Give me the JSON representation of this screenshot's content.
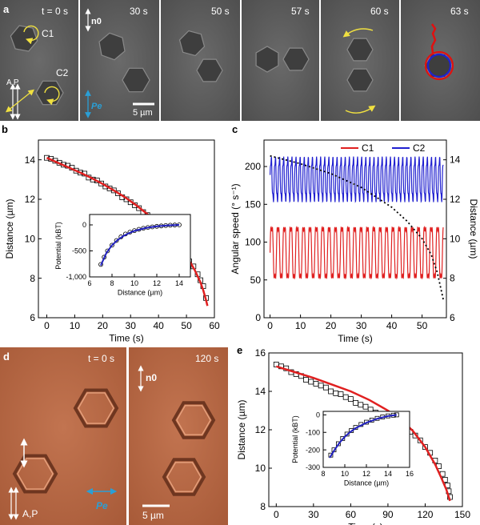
{
  "panel_a": {
    "label": "a",
    "frames": [
      {
        "time": "t = 0 s",
        "particles": [
          "C1",
          "C2"
        ]
      },
      {
        "time": "30 s"
      },
      {
        "time": "50 s"
      },
      {
        "time": "57 s"
      },
      {
        "time": "60 s"
      },
      {
        "time": "63 s"
      }
    ],
    "director_label": "n0",
    "polarization_label": "Pe",
    "polarizer_label": "A P",
    "scale_bar": "5 µm",
    "colors": {
      "frame_bg": "#5c5c5c",
      "arrow_yellow": "#f0e040",
      "arrow_cyan": "#2a9fd6",
      "trail_red": "#e01010",
      "trail_blue": "#2020d0"
    }
  },
  "panel_b": {
    "label": "b"
  },
  "panel_c": {
    "label": "c"
  },
  "panel_d": {
    "label": "d",
    "frames": [
      {
        "time": "t = 0 s"
      },
      {
        "time": "120 s"
      }
    ],
    "director_label": "n0",
    "polarization_label": "Pe",
    "polarizer_label": "A,P",
    "scale_bar": "5 µm",
    "colors": {
      "frame_bg": "#b86a44",
      "arrow_cyan": "#2a9fd6"
    }
  },
  "panel_e": {
    "label": "e"
  },
  "chart_data": [
    {
      "id": "b-main",
      "type": "scatter",
      "title": "",
      "xlabel": "Time (s)",
      "ylabel": "Distance (µm)",
      "xlim": [
        -3,
        60
      ],
      "ylim": [
        6,
        15
      ],
      "xticks": [
        0,
        10,
        20,
        30,
        40,
        50,
        60
      ],
      "yticks": [
        6,
        8,
        10,
        12,
        14
      ],
      "series": [
        {
          "name": "data",
          "marker": "square",
          "color": "#000000",
          "x": [
            0,
            1.5,
            3,
            4.5,
            6,
            7.5,
            9,
            10.5,
            12,
            13.5,
            15,
            16.5,
            18,
            19.5,
            21,
            22.5,
            24,
            25.5,
            27,
            28.5,
            30,
            31.5,
            33,
            34.5,
            36,
            37.5,
            39,
            40.5,
            42,
            43.5,
            45,
            46.5,
            48,
            49.5,
            51,
            52.5,
            54,
            55,
            56,
            57
          ],
          "y": [
            14.1,
            14.05,
            13.95,
            13.85,
            13.75,
            13.7,
            13.6,
            13.45,
            13.35,
            13.3,
            13.1,
            13.0,
            12.95,
            12.8,
            12.65,
            12.55,
            12.45,
            12.3,
            12.1,
            12.0,
            11.85,
            11.7,
            11.55,
            11.35,
            11.2,
            11.0,
            10.85,
            10.6,
            10.4,
            10.2,
            9.95,
            9.75,
            9.5,
            9.2,
            8.85,
            8.6,
            8.2,
            7.9,
            7.6,
            7.0
          ]
        },
        {
          "name": "fit",
          "marker": "line",
          "color": "#e02020",
          "x": [
            0,
            4,
            8,
            12,
            16,
            20,
            24,
            28,
            32,
            36,
            40,
            44,
            48,
            51,
            53,
            55,
            56,
            57,
            57.5
          ],
          "y": [
            14.1,
            13.85,
            13.6,
            13.35,
            13.08,
            12.78,
            12.45,
            12.1,
            11.7,
            11.25,
            10.75,
            10.2,
            9.5,
            8.9,
            8.4,
            7.8,
            7.4,
            6.9,
            6.6
          ]
        }
      ]
    },
    {
      "id": "b-inset",
      "type": "scatter",
      "xlabel": "Distance (µm)",
      "ylabel": "Potential (kBT)",
      "xlim": [
        6,
        15
      ],
      "ylim": [
        -1000,
        200
      ],
      "xticks": [
        6,
        8,
        10,
        12,
        14
      ],
      "yticks": [
        -1000,
        -500,
        0
      ],
      "ytick_labels": [
        "-1,000",
        "-500",
        "0"
      ],
      "series": [
        {
          "name": "data",
          "marker": "circle",
          "color": "#000000",
          "x": [
            7.0,
            7.3,
            7.6,
            8.0,
            8.4,
            8.8,
            9.2,
            9.6,
            10.0,
            10.4,
            10.8,
            11.2,
            11.6,
            12.0,
            12.4,
            12.8,
            13.2,
            13.6,
            14.0
          ],
          "y": [
            -760,
            -620,
            -500,
            -390,
            -300,
            -230,
            -175,
            -140,
            -110,
            -85,
            -65,
            -50,
            -38,
            -28,
            -20,
            -12,
            -6,
            -3,
            0
          ]
        },
        {
          "name": "fit",
          "marker": "line",
          "color": "#2020c0",
          "x": [
            7.0,
            7.5,
            8.0,
            8.5,
            9.0,
            9.5,
            10.0,
            11.0,
            12.0,
            13.0,
            14.0
          ],
          "y": [
            -780,
            -540,
            -390,
            -290,
            -215,
            -160,
            -115,
            -60,
            -28,
            -10,
            0
          ]
        }
      ]
    },
    {
      "id": "c-main",
      "type": "line",
      "xlabel": "Time (s)",
      "ylabel": "Angular speed (° s⁻¹)",
      "ylabel_right": "Distance (µm)",
      "xlim": [
        -2,
        58
      ],
      "ylim": [
        0,
        235
      ],
      "ylim_right": [
        6,
        15
      ],
      "xticks": [
        0,
        10,
        20,
        30,
        40,
        50
      ],
      "yticks": [
        0,
        50,
        100,
        150,
        200
      ],
      "yticks_right": [
        6,
        8,
        10,
        12,
        14
      ],
      "legend": "top-right",
      "series": [
        {
          "name": "C1",
          "color": "#e02020",
          "period": 2.1,
          "center": 86,
          "amplitude": 38,
          "t_start": 0,
          "t_end": 57
        },
        {
          "name": "C2",
          "color": "#2020d0",
          "period": 1.35,
          "center": 183,
          "amplitude": 28,
          "t_start": 0,
          "t_end": 57
        },
        {
          "name": "Distance",
          "color": "#000000",
          "style": "dotted",
          "x": [
            0,
            10,
            20,
            30,
            40,
            45,
            50,
            53,
            55,
            57
          ],
          "y": [
            14.2,
            13.8,
            13.3,
            12.6,
            11.6,
            10.9,
            10.0,
            9.2,
            8.3,
            6.9
          ]
        }
      ],
      "legend_entries": [
        "C1",
        "C2"
      ]
    },
    {
      "id": "e-main",
      "type": "scatter",
      "xlabel": "Time (s)",
      "ylabel": "Distance (µm)",
      "xlim": [
        -6,
        150
      ],
      "ylim": [
        8,
        16
      ],
      "xticks": [
        0,
        30,
        60,
        90,
        120,
        150
      ],
      "yticks": [
        8,
        10,
        12,
        14,
        16
      ],
      "series": [
        {
          "name": "data",
          "marker": "square",
          "color": "#000000",
          "x": [
            0,
            4,
            8,
            12,
            16,
            20,
            24,
            28,
            32,
            36,
            40,
            44,
            48,
            52,
            56,
            60,
            64,
            68,
            72,
            76,
            80,
            84,
            88,
            92,
            96,
            100,
            104,
            108,
            112,
            116,
            120,
            124,
            128,
            131,
            134,
            136,
            138,
            139,
            140
          ],
          "y": [
            15.4,
            15.3,
            15.2,
            15.0,
            14.9,
            14.8,
            14.6,
            14.5,
            14.4,
            14.3,
            14.2,
            14.0,
            13.9,
            13.85,
            13.7,
            13.6,
            13.4,
            13.3,
            13.2,
            13.05,
            12.9,
            12.8,
            12.7,
            12.55,
            12.4,
            12.25,
            12.1,
            11.9,
            11.7,
            11.45,
            11.1,
            10.8,
            10.4,
            10.1,
            9.7,
            9.4,
            9.1,
            8.8,
            8.5
          ]
        },
        {
          "name": "fit",
          "marker": "line",
          "color": "#e02020",
          "x": [
            0,
            15,
            30,
            45,
            60,
            75,
            90,
            100,
            110,
            120,
            128,
            133,
            137,
            140
          ],
          "y": [
            15.3,
            15.0,
            14.7,
            14.35,
            14.0,
            13.55,
            13.0,
            12.55,
            11.95,
            11.1,
            10.2,
            9.5,
            8.9,
            8.3
          ]
        }
      ]
    },
    {
      "id": "e-inset",
      "type": "scatter",
      "xlabel": "Distance (µm)",
      "ylabel": "Potential (kBT)",
      "xlim": [
        8,
        16
      ],
      "ylim": [
        -300,
        20
      ],
      "xticks": [
        8,
        10,
        12,
        14,
        16
      ],
      "yticks": [
        -300,
        -200,
        -100,
        0
      ],
      "series": [
        {
          "name": "data",
          "marker": "square",
          "color": "#000000",
          "x": [
            8.7,
            9.0,
            9.4,
            9.8,
            10.2,
            10.6,
            11.0,
            11.5,
            12.0,
            12.5,
            13.0,
            13.5,
            14.0,
            14.5,
            14.8
          ],
          "y": [
            -230,
            -200,
            -165,
            -135,
            -110,
            -90,
            -72,
            -55,
            -42,
            -30,
            -20,
            -12,
            -6,
            -2,
            0
          ]
        },
        {
          "name": "fit",
          "marker": "line",
          "color": "#2020c0",
          "x": [
            8.6,
            9.0,
            9.5,
            10.0,
            10.5,
            11,
            12,
            13,
            14,
            14.8
          ],
          "y": [
            -245,
            -205,
            -160,
            -125,
            -98,
            -76,
            -45,
            -22,
            -7,
            0
          ]
        }
      ]
    }
  ]
}
